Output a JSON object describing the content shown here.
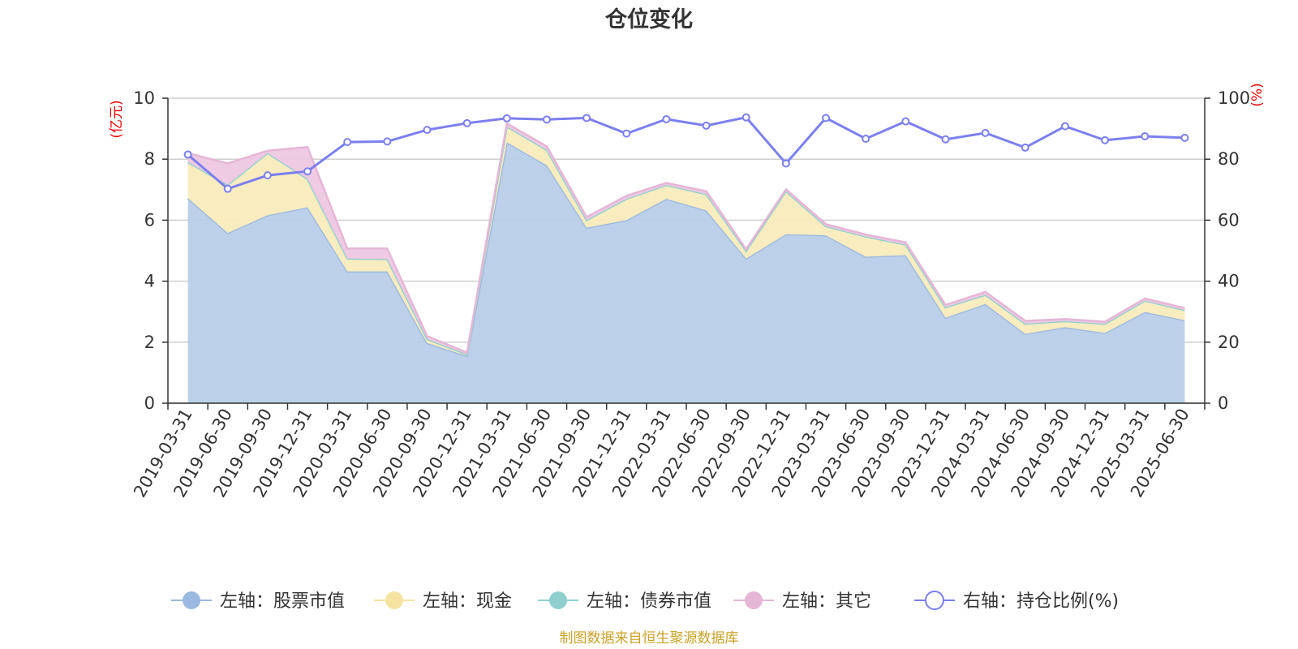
{
  "chart_data": {
    "type": "area",
    "title": "仓位变化",
    "left_axis_unit": "(亿元)",
    "right_axis_unit": "(%)",
    "left_ylim": [
      0,
      10
    ],
    "left_ticks": [
      0,
      2,
      4,
      6,
      8,
      10
    ],
    "right_ylim": [
      0,
      100
    ],
    "right_ticks": [
      0,
      20,
      40,
      60,
      80,
      100
    ],
    "grid": true,
    "legend_position": "bottom",
    "categories": [
      "2019-03-31",
      "2019-06-30",
      "2019-09-30",
      "2019-12-31",
      "2020-03-31",
      "2020-06-30",
      "2020-09-30",
      "2020-12-31",
      "2021-03-31",
      "2021-06-30",
      "2021-09-30",
      "2021-12-31",
      "2022-03-31",
      "2022-06-30",
      "2022-09-30",
      "2022-12-31",
      "2023-03-31",
      "2023-06-30",
      "2023-09-30",
      "2023-12-31",
      "2024-03-31",
      "2024-06-30",
      "2024-09-30",
      "2024-12-31",
      "2025-03-31",
      "2025-06-30"
    ],
    "stacked_series": [
      {
        "name": "左轴：股票市值",
        "axis": "left",
        "color": "#9ab8e0",
        "fill": "#b8cde9",
        "values": [
          6.72,
          5.58,
          6.16,
          6.42,
          4.32,
          4.32,
          1.97,
          1.55,
          8.55,
          7.8,
          5.75,
          6.0,
          6.7,
          6.32,
          4.74,
          5.54,
          5.5,
          4.8,
          4.85,
          2.8,
          3.25,
          2.27,
          2.49,
          2.3,
          2.99,
          2.72
        ]
      },
      {
        "name": "左轴：现金",
        "axis": "left",
        "color": "#f6e3a1",
        "fill": "#f9ecbd",
        "values": [
          1.18,
          1.58,
          2.04,
          0.93,
          0.42,
          0.4,
          0.13,
          0.05,
          0.52,
          0.5,
          0.25,
          0.7,
          0.45,
          0.53,
          0.25,
          1.41,
          0.3,
          0.66,
          0.35,
          0.34,
          0.3,
          0.33,
          0.2,
          0.3,
          0.37,
          0.33
        ]
      },
      {
        "name": "左轴：债券市值",
        "axis": "left",
        "color": "#8fd0cf",
        "fill": "#a8dcdb",
        "values": [
          0,
          0,
          0,
          0,
          0,
          0,
          0,
          0,
          0,
          0,
          0,
          0,
          0,
          0,
          0,
          0,
          0,
          0,
          0,
          0,
          0,
          0,
          0,
          0,
          0,
          0
        ]
      },
      {
        "name": "左轴：其它",
        "axis": "left",
        "color": "#e6b6d6",
        "fill": "#edc8e0",
        "values": [
          0.3,
          0.7,
          0.08,
          1.05,
          0.33,
          0.35,
          0.1,
          0.06,
          0.1,
          0.12,
          0.1,
          0.1,
          0.07,
          0.1,
          0.06,
          0.06,
          0.07,
          0.07,
          0.07,
          0.08,
          0.1,
          0.1,
          0.07,
          0.07,
          0.07,
          0.07
        ]
      }
    ],
    "line_series": {
      "name": "右轴：持仓比例(%)",
      "axis": "right",
      "color": "#7b7fef",
      "values": [
        81.5,
        70.3,
        74.7,
        76.0,
        85.6,
        85.8,
        89.6,
        91.8,
        93.4,
        93.0,
        93.5,
        88.4,
        93.1,
        91.0,
        93.7,
        78.6,
        93.5,
        86.7,
        92.4,
        86.5,
        88.6,
        83.8,
        90.8,
        86.2,
        87.5,
        87.0
      ]
    },
    "footer": "制图数据来自恒生聚源数据库"
  }
}
